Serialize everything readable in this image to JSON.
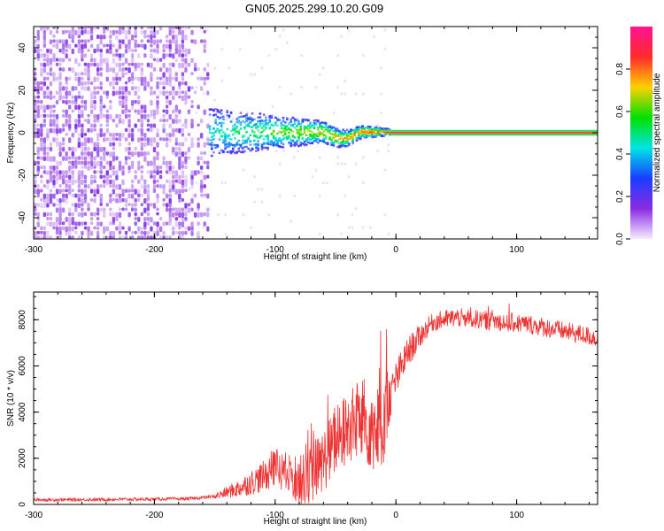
{
  "title": "GN05.2025.299.10.20.G09",
  "chart_data": [
    {
      "type": "heatmap",
      "xlabel": "Height of straight line (km)",
      "ylabel": "Frequency (Hz)",
      "xlim": [
        -300,
        167
      ],
      "ylim": [
        -50,
        50
      ],
      "xticks": [
        -300,
        -200,
        -100,
        0,
        100
      ],
      "yticks": [
        -40,
        -20,
        0,
        20,
        40
      ],
      "xtick_labels": [
        "-300",
        "-200",
        "-100",
        "0",
        "100"
      ],
      "ytick_labels": [
        "-40",
        "-20",
        "0",
        "20",
        "40"
      ],
      "colorbar": {
        "label": "Normalized spectral amplitude",
        "range": [
          0,
          1
        ],
        "ticks": [
          0,
          0.2,
          0.4,
          0.6,
          0.8
        ],
        "tick_labels": [
          "0.0",
          "0.2",
          "0.4",
          "0.6",
          "0.8"
        ],
        "colormap": [
          "#f6ecff",
          "#8a2be2",
          "#1a3dff",
          "#00e5e5",
          "#00e000",
          "#ffd000",
          "#ff2a2a",
          "#ff1493"
        ]
      },
      "regions": [
        {
          "name": "noise",
          "x": [
            -300,
            -155
          ],
          "freq": [
            -50,
            50
          ],
          "amplitude": 0.1
        },
        {
          "name": "transition",
          "x": [
            -155,
            -5
          ],
          "freq_center": 0,
          "amplitude": 0.4
        },
        {
          "name": "carrier",
          "x": [
            -5,
            167
          ],
          "freq": 0,
          "amplitude": 0.95
        }
      ]
    },
    {
      "type": "line",
      "xlabel": "Height of straight line (km)",
      "ylabel": "SNR (10 * v/v)",
      "xlim": [
        -300,
        167
      ],
      "ylim": [
        0,
        9200
      ],
      "xticks": [
        -300,
        -200,
        -100,
        0,
        100
      ],
      "yticks": [
        0,
        2000,
        4000,
        6000,
        8000
      ],
      "xtick_labels": [
        "-300",
        "-200",
        "-100",
        "0",
        "100"
      ],
      "ytick_labels": [
        "0",
        "2000",
        "4000",
        "6000",
        "8000"
      ],
      "line_color": "#ee3333",
      "series": [
        {
          "name": "SNR",
          "x": [
            -300,
            -250,
            -200,
            -170,
            -150,
            -130,
            -110,
            -100,
            -90,
            -80,
            -70,
            -60,
            -50,
            -40,
            -30,
            -20,
            -15,
            -10,
            -5,
            0,
            10,
            20,
            30,
            50,
            70,
            90,
            110,
            130,
            150,
            167
          ],
          "y": [
            200,
            210,
            230,
            250,
            350,
            700,
            1200,
            1600,
            1300,
            1000,
            1300,
            1900,
            2700,
            3300,
            3600,
            3400,
            3200,
            3800,
            4600,
            5400,
            6600,
            7300,
            7900,
            8100,
            8000,
            7900,
            7800,
            7600,
            7400,
            7200
          ]
        }
      ]
    }
  ]
}
